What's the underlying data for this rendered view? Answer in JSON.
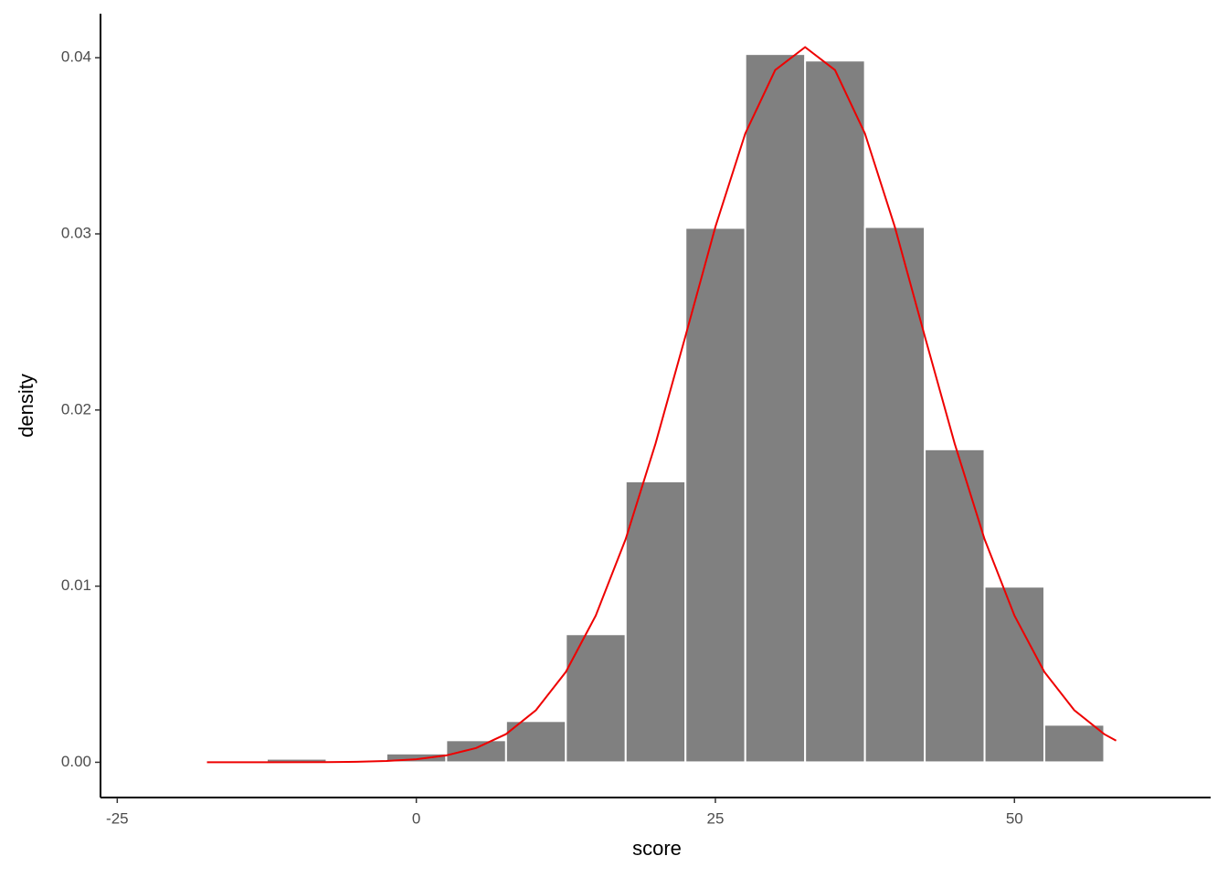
{
  "chart_data": {
    "type": "histogram",
    "x_label": "score",
    "y_label": "density",
    "bins": [
      -12.5,
      -7.5,
      -2.5,
      2.5,
      7.5,
      12.5,
      17.5,
      22.5,
      27.5,
      32.5,
      37.5,
      42.5,
      47.5,
      52.5,
      57.5
    ],
    "values": [
      0.0002,
      0,
      0.0005,
      0.00125,
      0.00234,
      0.00727,
      0.01595,
      0.03034,
      0.04021,
      0.03984,
      0.03039,
      0.01777,
      0.00997,
      0.00213
    ],
    "color": "#808080",
    "curve": {
      "type": "line",
      "color": "#ee0000",
      "x": [
        -17.5,
        -12.5,
        -7.5,
        -5,
        -2.5,
        0,
        2.5,
        5,
        7.5,
        10,
        12.5,
        15,
        17.5,
        20,
        22.5,
        25,
        27.5,
        30,
        32.5,
        35,
        37.5,
        40,
        42.5,
        45,
        47.5,
        50,
        52.5,
        55,
        57.5,
        58.5
      ],
      "values": [
        1e-07,
        1e-06,
        1e-05,
        2.8e-05,
        7.2e-05,
        0.00017,
        0.00039,
        0.00081,
        0.0016,
        0.00296,
        0.00513,
        0.00833,
        0.01267,
        0.0181,
        0.0242,
        0.0304,
        0.0357,
        0.0393,
        0.0406,
        0.0393,
        0.0357,
        0.0304,
        0.0242,
        0.0181,
        0.01267,
        0.00833,
        0.00513,
        0.00296,
        0.0016,
        0.00123
      ]
    },
    "xlim": [
      -26.4,
      66.4
    ],
    "ylim": [
      -0.002,
      0.0425
    ],
    "xticks": [
      -25,
      0,
      25,
      50
    ],
    "yticks": [
      {
        "value": 0,
        "label": "0.00"
      },
      {
        "value": 0.01,
        "label": "0.01"
      },
      {
        "value": 0.02,
        "label": "0.02"
      },
      {
        "value": 0.03,
        "label": "0.03"
      },
      {
        "value": 0.04,
        "label": "0.04"
      }
    ],
    "grid": false
  }
}
